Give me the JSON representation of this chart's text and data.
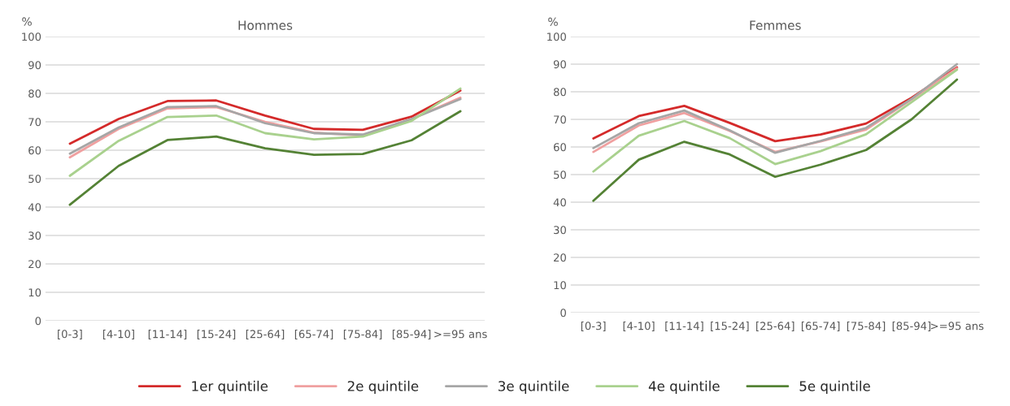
{
  "chart_data": [
    {
      "type": "line",
      "title": "Hommes",
      "ylabel": "%",
      "categories": [
        "[0-3]",
        "[4-10]",
        "[11-14]",
        "[15-24]",
        "[25-64]",
        "[65-74]",
        "[75-84]",
        "[85-94]",
        ">=95 ans"
      ],
      "ylim": [
        0,
        100
      ],
      "yticks": [
        0,
        10,
        20,
        30,
        40,
        50,
        60,
        70,
        80,
        90,
        100
      ],
      "grid": "y",
      "legend": "bottom",
      "marker": "none",
      "series": [
        {
          "name": "1er quintile",
          "color": "#d42a2a",
          "values": [
            62.3,
            71,
            77.3,
            77.5,
            72.2,
            67.5,
            67.2,
            71.8,
            81
          ]
        },
        {
          "name": "2e quintile",
          "color": "#f0a0a0",
          "values": [
            57.5,
            67.5,
            74.7,
            75.2,
            70,
            66.2,
            65.2,
            71,
            78.5
          ]
        },
        {
          "name": "3e quintile",
          "color": "#a6a6a6",
          "values": [
            58.8,
            68,
            75.2,
            75.5,
            69.5,
            66,
            65.5,
            71,
            78
          ]
        },
        {
          "name": "4e quintile",
          "color": "#a9d18e",
          "values": [
            51,
            63.3,
            71.7,
            72.2,
            66,
            63.8,
            64.8,
            70.3,
            81.7
          ]
        },
        {
          "name": "5e quintile",
          "color": "#548235",
          "values": [
            40.8,
            54.5,
            63.6,
            64.8,
            60.7,
            58.4,
            58.7,
            63.5,
            73.7
          ]
        }
      ]
    },
    {
      "type": "line",
      "title": "Femmes",
      "ylabel": "%",
      "categories": [
        "[0-3]",
        "[4-10]",
        "[11-14]",
        "[15-24]",
        "[25-64]",
        "[65-74]",
        "[75-84]",
        "[85-94]",
        ">=95 ans"
      ],
      "ylim": [
        0,
        100
      ],
      "yticks": [
        0,
        10,
        20,
        30,
        40,
        50,
        60,
        70,
        80,
        90,
        100
      ],
      "grid": "y",
      "marker": "none",
      "series": [
        {
          "color": "#d42a2a",
          "values": [
            63.1,
            71.2,
            74.9,
            68.7,
            62.1,
            64.5,
            68.5,
            77.8,
            88.8
          ]
        },
        {
          "color": "#f0a0a0",
          "values": [
            58.2,
            67.8,
            72.3,
            65.8,
            58.2,
            62,
            66.3,
            77.2,
            88.5
          ]
        },
        {
          "color": "#a6a6a6",
          "values": [
            59.6,
            68.6,
            73.2,
            66,
            57.9,
            62.2,
            66.9,
            77.4,
            90
          ]
        },
        {
          "color": "#a9d18e",
          "values": [
            51.1,
            64.1,
            69.4,
            63.2,
            53.8,
            58.5,
            64.6,
            76.2,
            88
          ]
        },
        {
          "color": "#548235",
          "values": [
            40.5,
            55.4,
            61.9,
            57.3,
            49.2,
            53.6,
            58.9,
            70,
            84.4
          ]
        }
      ]
    }
  ]
}
